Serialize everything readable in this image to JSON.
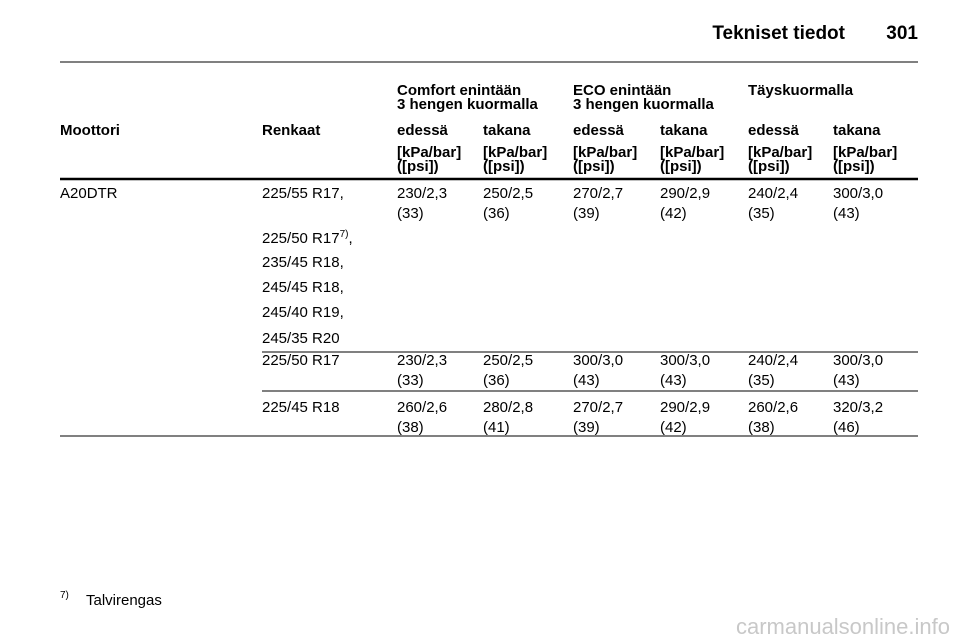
{
  "header": {
    "title": "Tekniset tiedot",
    "page": "301"
  },
  "table": {
    "group_headers": [
      [
        "Comfort enintään",
        "3 hengen kuormalla"
      ],
      [
        "ECO enintään",
        "3 hengen kuormalla"
      ],
      [
        "Täyskuormalla"
      ]
    ],
    "columns": [
      "Moottori",
      "Renkaat",
      "edessä",
      "takana",
      "edessä",
      "takana",
      "edessä",
      "takana"
    ],
    "units": [
      [
        "[kPa/bar]",
        "([psi])"
      ],
      [
        "[kPa/bar]",
        "([psi])"
      ],
      [
        "[kPa/bar]",
        "([psi])"
      ],
      [
        "[kPa/bar]",
        "([psi])"
      ],
      [
        "[kPa/bar]",
        "([psi])"
      ],
      [
        "[kPa/bar]",
        "([psi])"
      ]
    ],
    "rows": [
      {
        "engine": "A20DTR",
        "tyres": [
          "225/55 R17,",
          {
            "text": "225/50 R17",
            "note": "7)",
            "after": ","
          },
          "235/45 R18,",
          "245/45 R18,",
          "245/40 R19,",
          "245/35 R20"
        ],
        "values": [
          [
            "230/2,3",
            "(33)"
          ],
          [
            "250/2,5",
            "(36)"
          ],
          [
            "270/2,7",
            "(39)"
          ],
          [
            "290/2,9",
            "(42)"
          ],
          [
            "240/2,4",
            "(35)"
          ],
          [
            "300/3,0",
            "(43)"
          ]
        ]
      },
      {
        "tyres": [
          "225/50 R17"
        ],
        "values": [
          [
            "230/2,3",
            "(33)"
          ],
          [
            "250/2,5",
            "(36)"
          ],
          [
            "300/3,0",
            "(43)"
          ],
          [
            "300/3,0",
            "(43)"
          ],
          [
            "240/2,4",
            "(35)"
          ],
          [
            "300/3,0",
            "(43)"
          ]
        ]
      },
      {
        "tyres": [
          "225/45 R18"
        ],
        "values": [
          [
            "260/2,6",
            "(38)"
          ],
          [
            "280/2,8",
            "(41)"
          ],
          [
            "270/2,7",
            "(39)"
          ],
          [
            "290/2,9",
            "(42)"
          ],
          [
            "260/2,6",
            "(38)"
          ],
          [
            "320/3,2",
            "(46)"
          ]
        ]
      }
    ]
  },
  "footnote": {
    "mark": "7)",
    "text": "Talvirengas"
  },
  "watermark": "carmanualsonline.info"
}
